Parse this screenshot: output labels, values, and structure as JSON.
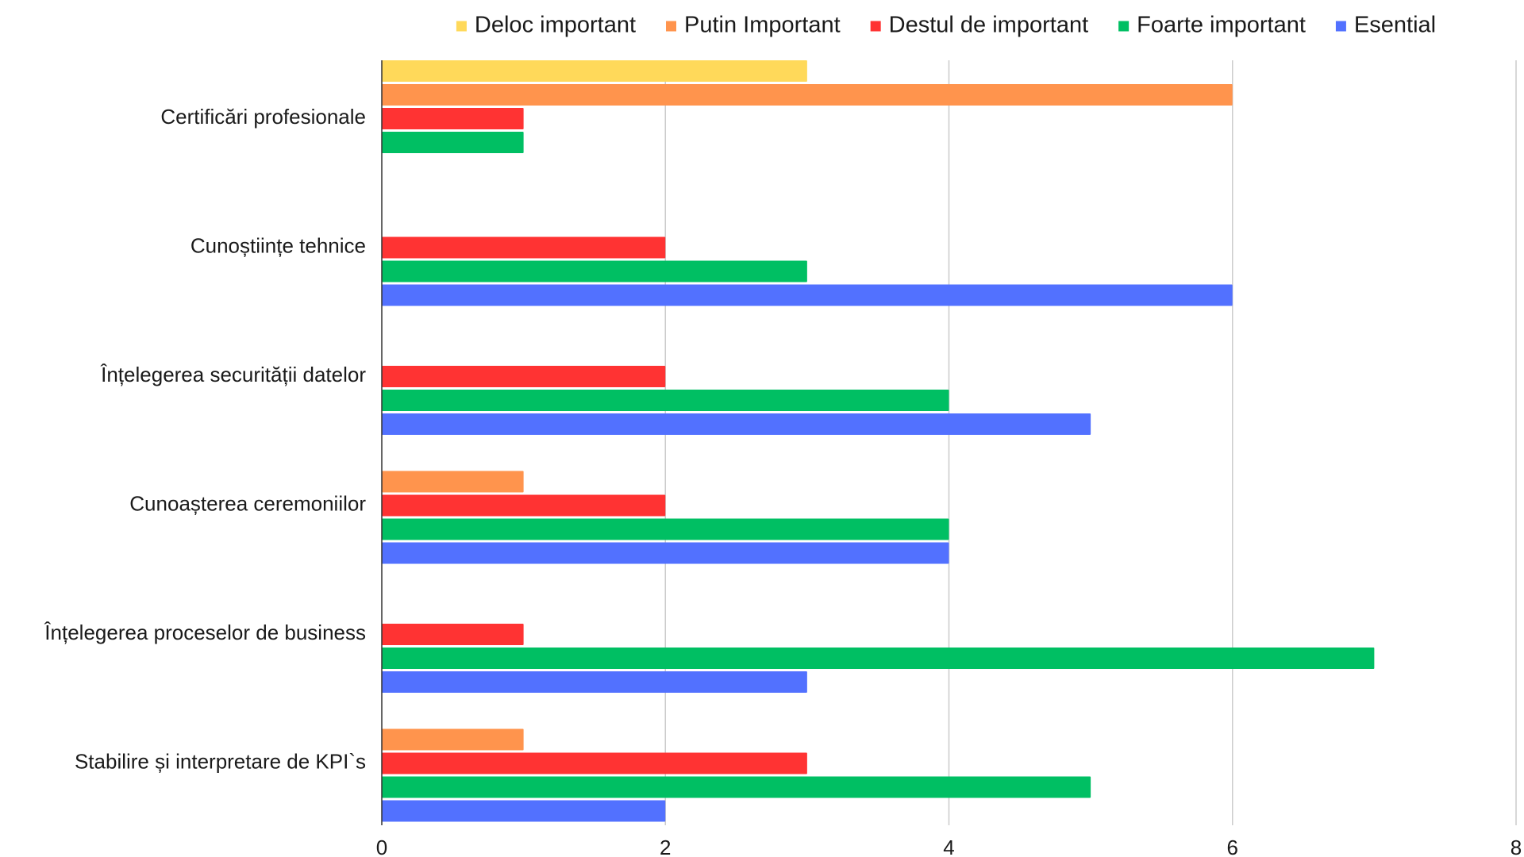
{
  "chart_data": {
    "type": "bar",
    "orientation": "horizontal",
    "title": "",
    "xlabel": "",
    "ylabel": "",
    "xlim": [
      0,
      8
    ],
    "x_ticks": [
      0,
      2,
      4,
      6,
      8
    ],
    "grid": "vertical",
    "legend_position": "top",
    "categories": [
      "Certificări profesionale",
      "Cunoștiințe tehnice",
      "Înțelegerea securității datelor",
      "Cunoașterea  ceremoniilor",
      "Înțelegerea proceselor de business",
      "Stabilire  și interpretare de KPI`s"
    ],
    "series": [
      {
        "name": "Deloc important",
        "color": "#ffd95a",
        "values": [
          3,
          0,
          0,
          0,
          0,
          0
        ]
      },
      {
        "name": "Putin Important",
        "color": "#ff944d",
        "values": [
          6,
          0,
          0,
          1,
          0,
          1
        ]
      },
      {
        "name": "Destul de important",
        "color": "#ff3333",
        "values": [
          1,
          2,
          2,
          2,
          1,
          3
        ]
      },
      {
        "name": "Foarte important",
        "color": "#00bf63",
        "values": [
          1,
          3,
          4,
          4,
          7,
          5
        ]
      },
      {
        "name": "Esential",
        "color": "#5271ff",
        "values": [
          0,
          6,
          5,
          4,
          3,
          2
        ]
      }
    ]
  }
}
